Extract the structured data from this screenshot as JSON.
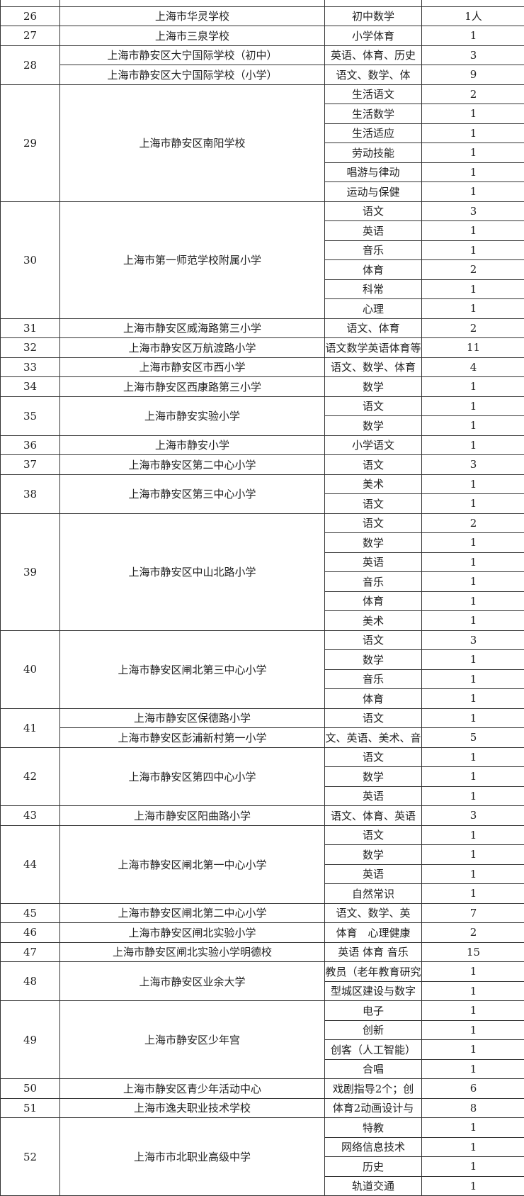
{
  "table": {
    "groups": [
      {
        "no": 26,
        "schools": [
          {
            "name": "上海市华灵学校",
            "posts": [
              [
                "初中数学",
                "1人"
              ]
            ]
          }
        ]
      },
      {
        "no": 27,
        "schools": [
          {
            "name": "上海市三泉学校",
            "posts": [
              [
                "小学体育",
                1
              ]
            ]
          }
        ]
      },
      {
        "no": 28,
        "schools": [
          {
            "name": "上海市静安区大宁国际学校（初中）",
            "posts": [
              [
                "英语、体育、历史",
                3
              ]
            ]
          },
          {
            "name": "上海市静安区大宁国际学校（小学）",
            "posts": [
              [
                "语文、数学、体",
                9
              ]
            ]
          }
        ]
      },
      {
        "no": 29,
        "schools": [
          {
            "name": "上海市静安区南阳学校",
            "posts": [
              [
                "生活语文",
                2
              ],
              [
                "生活数学",
                1
              ],
              [
                "生活适应",
                1
              ],
              [
                "劳动技能",
                1
              ],
              [
                "唱游与律动",
                1
              ],
              [
                "运动与保健",
                1
              ]
            ]
          }
        ]
      },
      {
        "no": 30,
        "schools": [
          {
            "name": "上海市第一师范学校附属小学",
            "posts": [
              [
                "语文",
                3
              ],
              [
                "英语",
                1
              ],
              [
                "音乐",
                1
              ],
              [
                "体育",
                2
              ],
              [
                "科常",
                1
              ],
              [
                "心理",
                1
              ]
            ]
          }
        ]
      },
      {
        "no": 31,
        "schools": [
          {
            "name": "上海市静安区威海路第三小学",
            "posts": [
              [
                "语文、体育",
                2
              ]
            ]
          }
        ]
      },
      {
        "no": 32,
        "schools": [
          {
            "name": "上海市静安区万航渡路小学",
            "posts": [
              [
                "语文数学英语体育等",
                11
              ]
            ]
          }
        ]
      },
      {
        "no": 33,
        "schools": [
          {
            "name": "上海市静安区市西小学",
            "posts": [
              [
                "语文、数学、体育",
                4
              ]
            ]
          }
        ]
      },
      {
        "no": 34,
        "schools": [
          {
            "name": "上海市静安区西康路第三小学",
            "posts": [
              [
                "数学",
                1
              ]
            ]
          }
        ]
      },
      {
        "no": 35,
        "schools": [
          {
            "name": "上海市静安实验小学",
            "posts": [
              [
                "语文",
                1
              ],
              [
                "数学",
                1
              ]
            ]
          }
        ]
      },
      {
        "no": 36,
        "schools": [
          {
            "name": "上海市静安小学",
            "posts": [
              [
                "小学语文",
                1
              ]
            ]
          }
        ]
      },
      {
        "no": 37,
        "schools": [
          {
            "name": "上海市静安区第二中心小学",
            "posts": [
              [
                "语文",
                3
              ]
            ]
          }
        ]
      },
      {
        "no": 38,
        "schools": [
          {
            "name": "上海市静安区第三中心小学",
            "posts": [
              [
                "美术",
                1
              ],
              [
                "语文",
                1
              ]
            ]
          }
        ]
      },
      {
        "no": 39,
        "schools": [
          {
            "name": "上海市静安区中山北路小学",
            "posts": [
              [
                "语文",
                2
              ],
              [
                "数学",
                1
              ],
              [
                "英语",
                1
              ],
              [
                "音乐",
                1
              ],
              [
                "体育",
                1
              ],
              [
                "美术",
                1
              ]
            ]
          }
        ]
      },
      {
        "no": 40,
        "schools": [
          {
            "name": "上海市静安区闸北第三中心小学",
            "posts": [
              [
                "语文",
                3
              ],
              [
                "数学",
                1
              ],
              [
                "音乐",
                1
              ],
              [
                "体育",
                1
              ]
            ]
          }
        ]
      },
      {
        "no": 41,
        "schools": [
          {
            "name": "上海市静安区保德路小学",
            "posts": [
              [
                "语文",
                1
              ]
            ]
          },
          {
            "name": "上海市静安区彭浦新村第一小学",
            "posts": [
              [
                "文、英语、美术、音",
                5
              ]
            ]
          }
        ]
      },
      {
        "no": 42,
        "schools": [
          {
            "name": "上海市静安区第四中心小学",
            "posts": [
              [
                "语文",
                1
              ],
              [
                "数学",
                1
              ],
              [
                "英语",
                1
              ]
            ]
          }
        ]
      },
      {
        "no": 43,
        "schools": [
          {
            "name": "上海市静安区阳曲路小学",
            "posts": [
              [
                "语文、体育、英语",
                3
              ]
            ]
          }
        ]
      },
      {
        "no": 44,
        "schools": [
          {
            "name": "上海市静安区闸北第一中心小学",
            "posts": [
              [
                "语文",
                1
              ],
              [
                "数学",
                1
              ],
              [
                "英语",
                1
              ],
              [
                "自然常识",
                1
              ]
            ]
          }
        ]
      },
      {
        "no": 45,
        "schools": [
          {
            "name": "上海市静安区闸北第二中心小学",
            "posts": [
              [
                "语文、数学、英",
                7
              ]
            ]
          }
        ]
      },
      {
        "no": 46,
        "schools": [
          {
            "name": "上海市静安区闸北实验小学",
            "posts": [
              [
                "体育　心理健康",
                2
              ]
            ]
          }
        ]
      },
      {
        "no": 47,
        "schools": [
          {
            "name": "上海市静安区闸北实验小学明德校",
            "posts": [
              [
                "英语 体育 音乐",
                15
              ]
            ]
          }
        ]
      },
      {
        "no": 48,
        "schools": [
          {
            "name": "上海市静安区业余大学",
            "posts": [
              [
                "教员（老年教育研究",
                1
              ],
              [
                "型城区建设与数字",
                1
              ]
            ]
          }
        ]
      },
      {
        "no": 49,
        "schools": [
          {
            "name": "上海市静安区少年宫",
            "posts": [
              [
                "电子",
                1
              ],
              [
                "创新",
                1
              ],
              [
                "创客（人工智能）",
                1
              ],
              [
                "合唱",
                1
              ]
            ]
          }
        ]
      },
      {
        "no": 50,
        "schools": [
          {
            "name": "上海市静安区青少年活动中心",
            "posts": [
              [
                "戏剧指导2个；创",
                6
              ]
            ]
          }
        ]
      },
      {
        "no": 51,
        "schools": [
          {
            "name": "上海市逸夫职业技术学校",
            "posts": [
              [
                "体育2动画设计与",
                8
              ]
            ]
          }
        ]
      },
      {
        "no": 52,
        "schools": [
          {
            "name": "上海市市北职业高级中学",
            "posts": [
              [
                "特教",
                1
              ],
              [
                "网络信息技术",
                1
              ],
              [
                "历史",
                1
              ],
              [
                "轨道交通",
                1
              ]
            ]
          }
        ]
      }
    ]
  }
}
